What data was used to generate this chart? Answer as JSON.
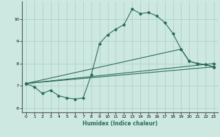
{
  "title": "",
  "xlabel": "Humidex (Indice chaleur)",
  "ylabel": "",
  "background_color": "#cce8e0",
  "grid_color": "#aaccc4",
  "line_color": "#2a6a5a",
  "xlim": [
    -0.5,
    23.5
  ],
  "ylim": [
    5.8,
    10.8
  ],
  "xticks": [
    0,
    1,
    2,
    3,
    4,
    5,
    6,
    7,
    8,
    9,
    10,
    11,
    12,
    13,
    14,
    15,
    16,
    17,
    18,
    19,
    20,
    21,
    22,
    23
  ],
  "yticks": [
    6,
    7,
    8,
    9,
    10
  ],
  "line1_x": [
    0,
    1,
    2,
    3,
    4,
    5,
    6,
    7,
    8,
    9,
    10,
    11,
    12,
    13,
    14,
    15,
    16,
    17,
    18,
    19,
    20,
    21,
    22,
    23
  ],
  "line1_y": [
    7.1,
    6.95,
    6.65,
    6.8,
    6.55,
    6.45,
    6.4,
    6.45,
    7.5,
    8.9,
    9.3,
    9.55,
    9.75,
    10.45,
    10.25,
    10.3,
    10.15,
    9.85,
    9.35,
    8.65,
    8.1,
    8.0,
    7.95,
    7.85
  ],
  "line2_x": [
    0,
    23
  ],
  "line2_y": [
    7.1,
    7.85
  ],
  "line3_x": [
    0,
    23
  ],
  "line3_y": [
    7.1,
    8.0
  ],
  "line4_x": [
    0,
    19,
    20,
    21,
    22,
    23
  ],
  "line4_y": [
    7.1,
    8.65,
    8.1,
    8.0,
    7.95,
    7.85
  ]
}
